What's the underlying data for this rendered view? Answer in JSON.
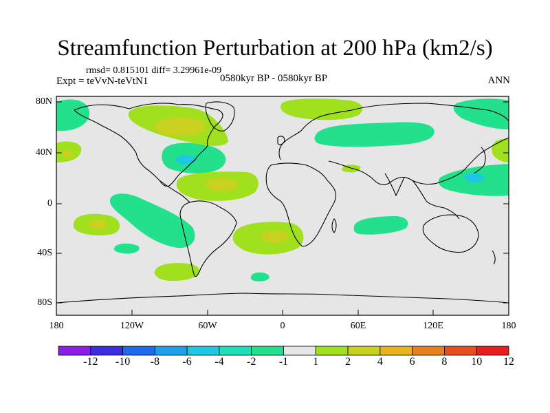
{
  "header": {
    "title": "Streamfunction Perturbation at 200 hPa (km2/s)",
    "stats": "rmsd= 0.815101 diff= 3.29961e-09",
    "experiment": "Expt = teVvN-teVtN1",
    "period": "0580kyr BP - 0580kyr BP",
    "season": "ANN"
  },
  "axes": {
    "lat_labels": [
      "80N",
      "40N",
      "0",
      "40S",
      "80S"
    ],
    "lon_labels": [
      "180",
      "120W",
      "60W",
      "0",
      "60E",
      "120E",
      "180"
    ]
  },
  "colorbar": {
    "labels": [
      "-12",
      "-10",
      "-8",
      "-6",
      "-4",
      "-2",
      "-1",
      "1",
      "2",
      "4",
      "6",
      "8",
      "10",
      "12"
    ],
    "colors": [
      "#8a1ee6",
      "#3a2ee0",
      "#1e6ae8",
      "#1ea0e8",
      "#1ec8e4",
      "#1ee0b8",
      "#23e08c",
      "#e6e6e6",
      "#a0e01e",
      "#c8d21e",
      "#e6b41e",
      "#e6821e",
      "#e6501e",
      "#e61e1e"
    ]
  },
  "colors": {
    "land_outline": "#000000",
    "ocean_neutral": "#e6e6e6",
    "pos_weak": "#a0e01e",
    "pos_mid": "#c8d21e",
    "neg_weak": "#23e08c",
    "neg_mid": "#1ec8e4"
  }
}
